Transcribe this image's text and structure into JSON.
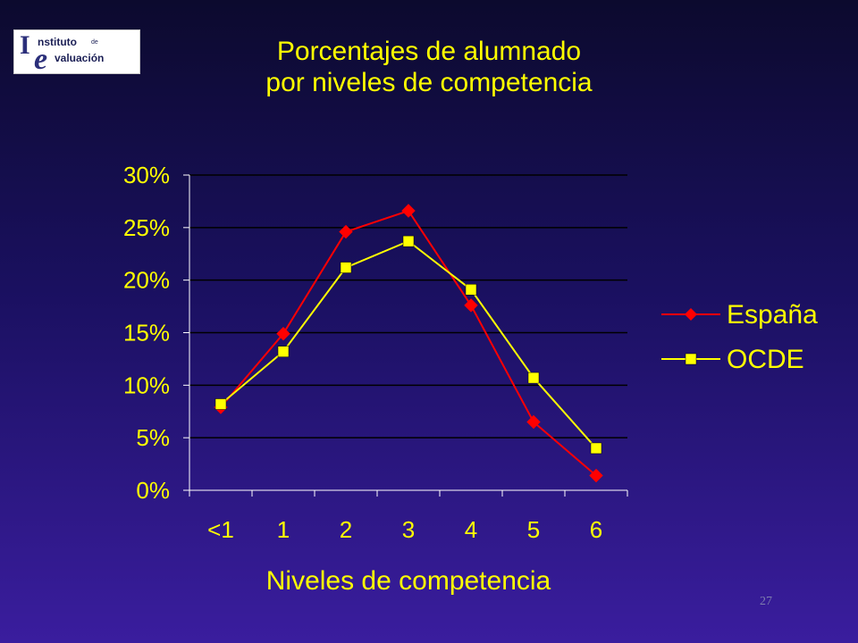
{
  "logo": {
    "letter_i": "I",
    "word1": "nstituto",
    "small": "de",
    "letter_e": "e",
    "word2": "valuación"
  },
  "title": {
    "line1": "Porcentajes de alumnado",
    "line2": "por niveles de competencia"
  },
  "page_number": "27",
  "colors": {
    "title": "#ffff00",
    "axis_text": "#ffff00",
    "espana": "#ff0000",
    "ocde": "#ffff00",
    "axis": "#ffffff"
  },
  "chart_data": {
    "type": "line",
    "title": "",
    "xlabel": "Niveles de competencia",
    "ylabel": "",
    "categories": [
      "<1",
      "1",
      "2",
      "3",
      "4",
      "5",
      "6"
    ],
    "ylim": [
      0,
      30
    ],
    "yticks": [
      "0%",
      "5%",
      "10%",
      "15%",
      "20%",
      "25%",
      "30%"
    ],
    "grid": "horizontal",
    "legend_position": "right",
    "series": [
      {
        "name": "España",
        "marker": "diamond",
        "values": [
          7.9,
          14.9,
          24.6,
          26.6,
          17.6,
          6.5,
          1.4
        ]
      },
      {
        "name": "OCDE",
        "marker": "square",
        "values": [
          8.2,
          13.2,
          21.2,
          23.7,
          19.1,
          10.7,
          4.0
        ]
      }
    ]
  }
}
